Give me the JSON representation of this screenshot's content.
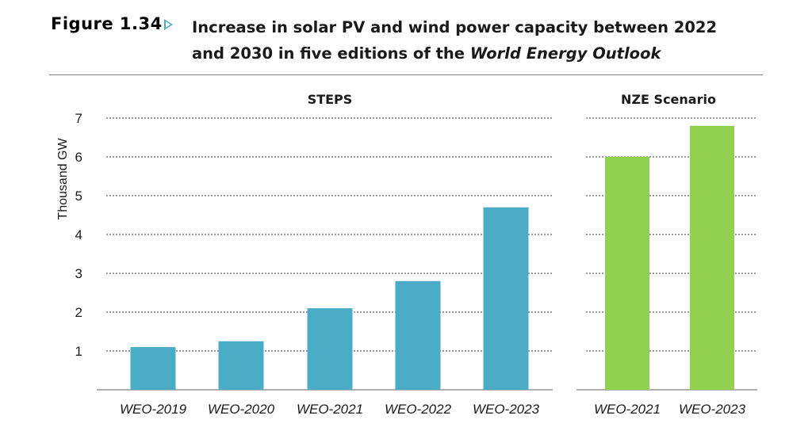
{
  "figure": {
    "label": "Figure 1.34",
    "title_main": "Increase in solar PV and wind power capacity between 2022 and 2030 in five editions of the ",
    "title_italic": "World Energy Outlook"
  },
  "chart_data": {
    "type": "bar",
    "ylabel": "Thousand GW",
    "ylim": [
      0,
      7
    ],
    "yticks": [
      1,
      2,
      3,
      4,
      5,
      6,
      7
    ],
    "grid": true,
    "panels": [
      {
        "title": "STEPS",
        "color": "#4bacc6",
        "categories": [
          "WEO-2019",
          "WEO-2020",
          "WEO-2021",
          "WEO-2022",
          "WEO-2023"
        ],
        "values": [
          1.1,
          1.25,
          2.1,
          2.8,
          4.7
        ]
      },
      {
        "title": "NZE Scenario",
        "color": "#92d050",
        "categories": [
          "WEO-2021",
          "WEO-2023"
        ],
        "values": [
          6.0,
          6.8
        ]
      }
    ]
  }
}
